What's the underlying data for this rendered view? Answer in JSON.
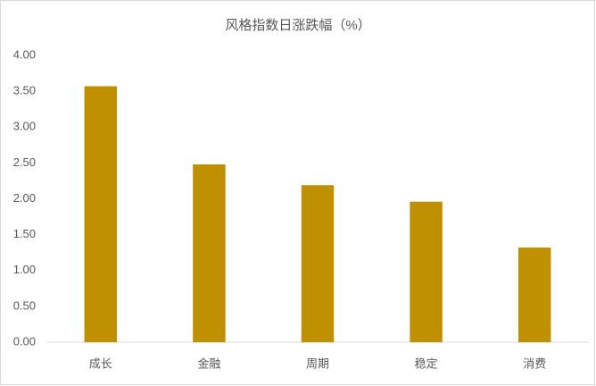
{
  "chart_data": {
    "type": "bar",
    "title": "风格指数日涨跌幅（%）",
    "categories": [
      "成长",
      "金融",
      "周期",
      "稳定",
      "消费"
    ],
    "values": [
      3.57,
      2.48,
      2.19,
      1.96,
      1.32
    ],
    "color": "#bf9000",
    "ylim": [
      0,
      4
    ],
    "yticks": [
      {
        "value": 0,
        "label": "0.00"
      },
      {
        "value": 0.5,
        "label": "0.50"
      },
      {
        "value": 1,
        "label": "1.00"
      },
      {
        "value": 1.5,
        "label": "1.50"
      },
      {
        "value": 2,
        "label": "2.00"
      },
      {
        "value": 2.5,
        "label": "2.50"
      },
      {
        "value": 3,
        "label": "3.00"
      },
      {
        "value": 3.5,
        "label": "3.50"
      },
      {
        "value": 4,
        "label": "4.00"
      }
    ],
    "grid": false
  }
}
